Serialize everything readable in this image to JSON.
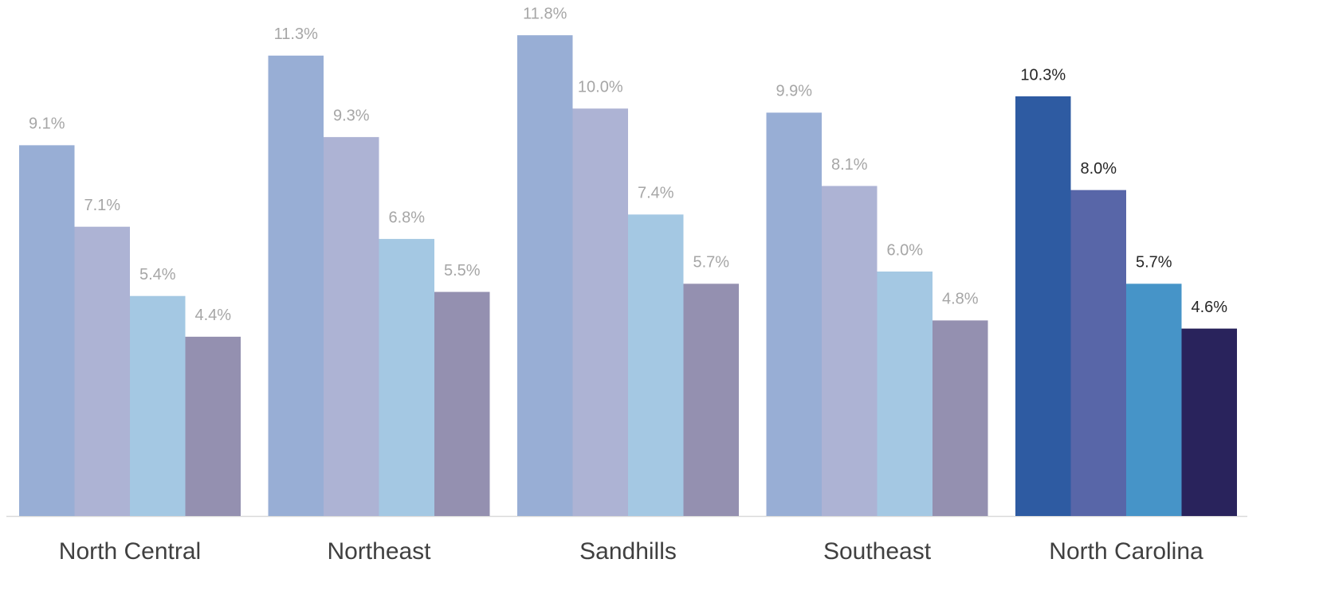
{
  "chart_data": {
    "type": "bar",
    "categories": [
      "North Central",
      "Northeast",
      "Sandhills",
      "Southeast",
      "North Carolina"
    ],
    "series": [
      {
        "values": [
          9.1,
          11.3,
          11.8,
          9.9,
          10.3
        ],
        "value_labels": [
          "9.1%",
          "11.3%",
          "11.8%",
          "9.9%",
          "10.3%"
        ],
        "colors": [
          "#98aed5",
          "#98aed5",
          "#98aed5",
          "#98aed5",
          "#2e5ba2"
        ]
      },
      {
        "values": [
          7.1,
          9.3,
          10.0,
          8.1,
          8.0
        ],
        "value_labels": [
          "7.1%",
          "9.3%",
          "10.0%",
          "8.1%",
          "8.0%"
        ],
        "colors": [
          "#adb3d4",
          "#adb3d4",
          "#adb3d4",
          "#adb3d4",
          "#5866a8"
        ]
      },
      {
        "values": [
          5.4,
          6.8,
          7.4,
          6.0,
          5.7
        ],
        "value_labels": [
          "5.4%",
          "6.8%",
          "7.4%",
          "6.0%",
          "5.7%"
        ],
        "colors": [
          "#a4c8e3",
          "#a4c8e3",
          "#a4c8e3",
          "#a4c8e3",
          "#4694c8"
        ]
      },
      {
        "values": [
          4.4,
          5.5,
          5.7,
          4.8,
          4.6
        ],
        "value_labels": [
          "4.4%",
          "5.5%",
          "5.7%",
          "4.8%",
          "4.6%"
        ],
        "colors": [
          "#9490b0",
          "#9490b0",
          "#9490b0",
          "#9490b0",
          "#29235c"
        ]
      }
    ],
    "label_colors": [
      "#a6a6a6",
      "#a6a6a6",
      "#a6a6a6",
      "#a6a6a6",
      "#262626"
    ],
    "ylim": [
      0,
      12
    ],
    "grid": false
  }
}
